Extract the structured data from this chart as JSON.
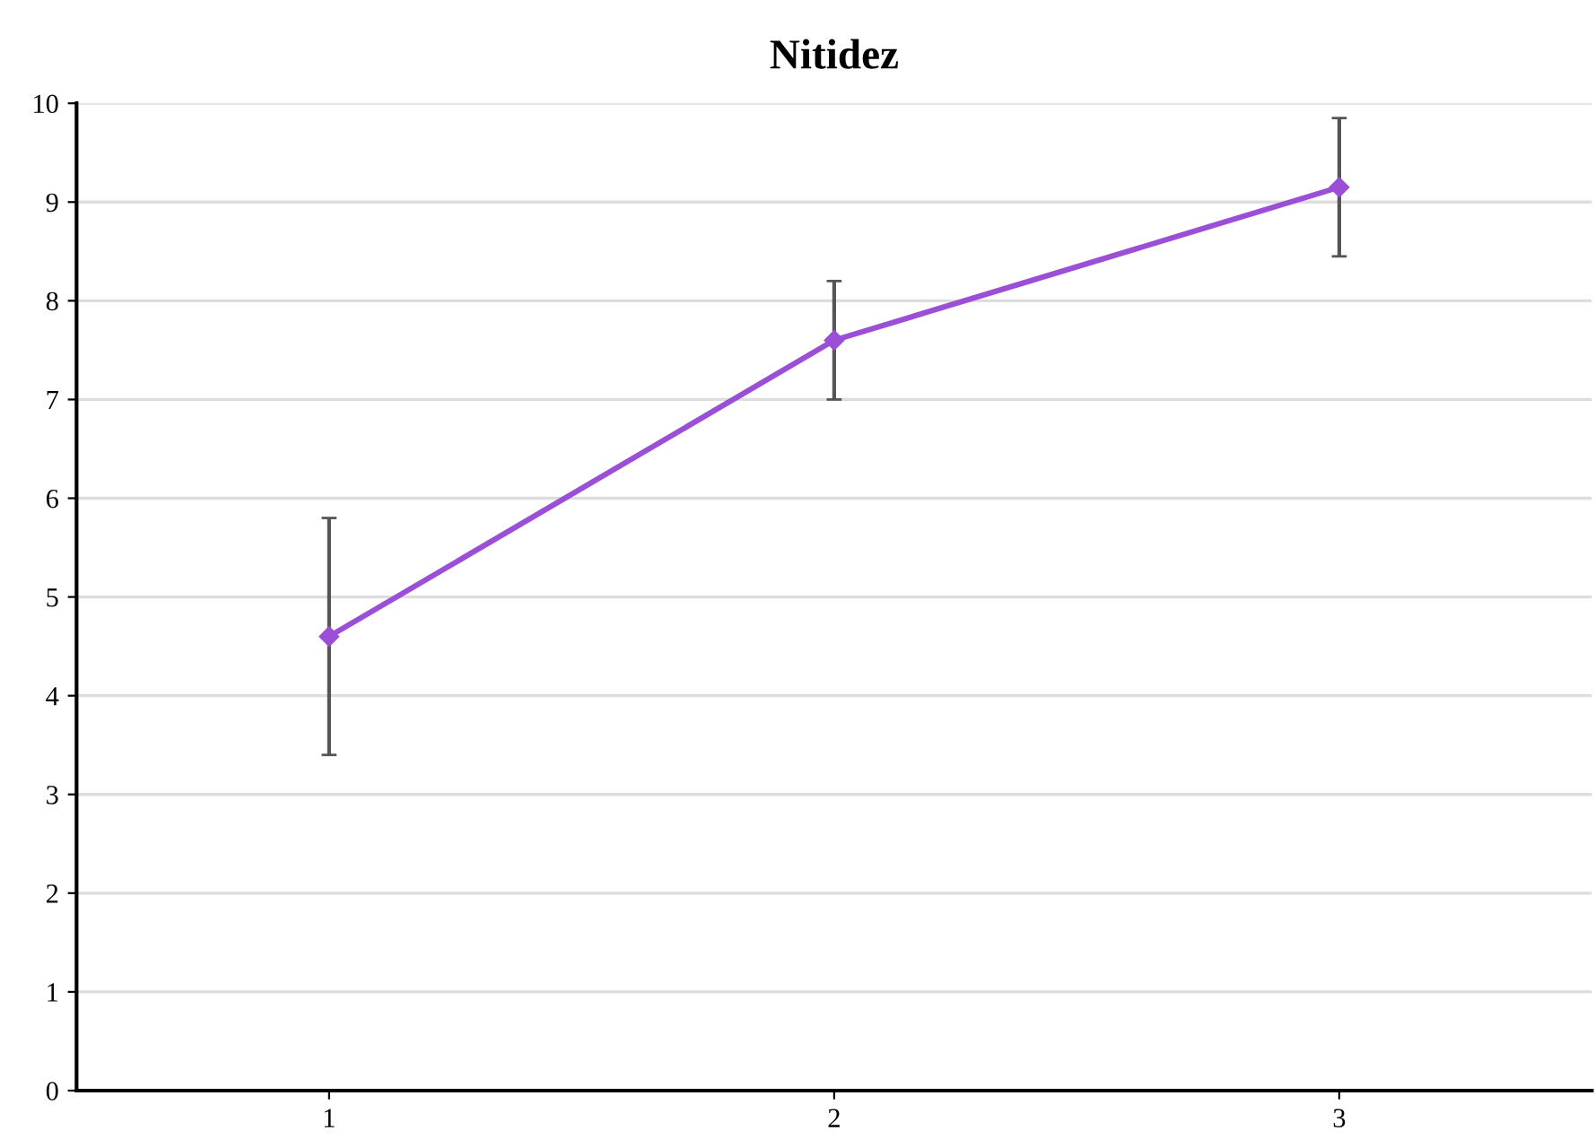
{
  "chart_data": {
    "type": "line",
    "title": "Nitidez",
    "categories": [
      "1",
      "2",
      "3"
    ],
    "series": [
      {
        "color": "#9b4fd6",
        "values": [
          4.6,
          7.6,
          9.15
        ],
        "errors": [
          1.2,
          0.6,
          0.7
        ]
      }
    ],
    "ylim": [
      0,
      10
    ],
    "yticks": [
      0,
      1,
      2,
      3,
      4,
      5,
      6,
      7,
      8,
      9,
      10
    ],
    "grid": "y",
    "marker": "diamond",
    "line_style": "solid",
    "legend": false
  }
}
